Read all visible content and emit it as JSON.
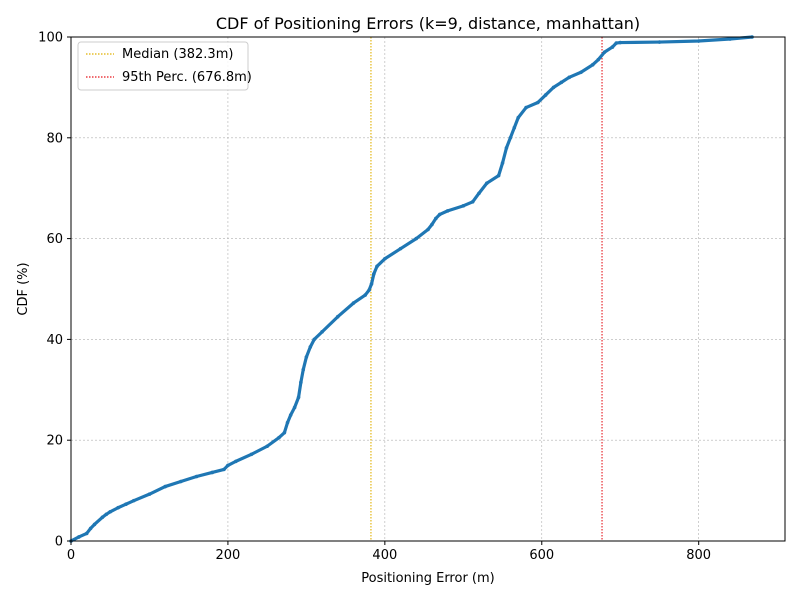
{
  "chart_data": {
    "type": "line",
    "title": "CDF of Positioning Errors (k=9, distance, manhattan)",
    "xlabel": "Positioning Error (m)",
    "ylabel": "CDF (%)",
    "xlim": [
      0,
      910
    ],
    "ylim": [
      0,
      100
    ],
    "x_ticks": [
      0,
      200,
      400,
      600,
      800
    ],
    "y_ticks": [
      0,
      20,
      40,
      60,
      80,
      100
    ],
    "grid": true,
    "legend_position": "upper-left",
    "series": [
      {
        "color": "#1f77b4",
        "x": [
          0,
          10,
          20,
          25,
          30,
          40,
          45,
          50,
          60,
          70,
          80,
          100,
          120,
          140,
          160,
          180,
          195,
          200,
          210,
          230,
          250,
          265,
          272,
          276,
          280,
          285,
          290,
          293,
          296,
          300,
          305,
          310,
          320,
          340,
          360,
          375,
          380,
          383,
          386,
          390,
          400,
          420,
          440,
          455,
          460,
          465,
          470,
          480,
          500,
          512,
          520,
          530,
          545,
          550,
          555,
          560,
          565,
          570,
          580,
          595,
          605,
          615,
          625,
          635,
          650,
          665,
          672,
          680,
          690,
          695,
          700,
          750,
          800,
          840,
          868
        ],
        "y": [
          0,
          0.8,
          1.5,
          2.5,
          3.3,
          4.7,
          5.3,
          5.8,
          6.6,
          7.3,
          8.0,
          9.3,
          10.8,
          11.8,
          12.8,
          13.6,
          14.2,
          15.0,
          15.8,
          17.2,
          18.8,
          20.5,
          21.5,
          23.5,
          25.0,
          26.5,
          28.5,
          31.5,
          34.0,
          36.5,
          38.5,
          40.0,
          41.5,
          44.5,
          47.2,
          48.8,
          49.8,
          51.0,
          53.0,
          54.5,
          56.0,
          58.0,
          60.0,
          61.8,
          62.8,
          64.0,
          64.8,
          65.5,
          66.5,
          67.3,
          69.0,
          71.0,
          72.5,
          75.0,
          78.0,
          80.0,
          82.0,
          84.0,
          86.0,
          87.0,
          88.5,
          90.0,
          91.0,
          92.0,
          93.0,
          94.5,
          95.5,
          97.0,
          98.0,
          98.8,
          98.9,
          99.0,
          99.2,
          99.6,
          100.0
        ]
      }
    ],
    "reference_lines": [
      {
        "label": "Median (382.3m)",
        "x": 382.3,
        "color": "#e0b000"
      },
      {
        "label": "95th Perc. (676.8m)",
        "x": 676.8,
        "color": "#e6161c"
      }
    ]
  }
}
